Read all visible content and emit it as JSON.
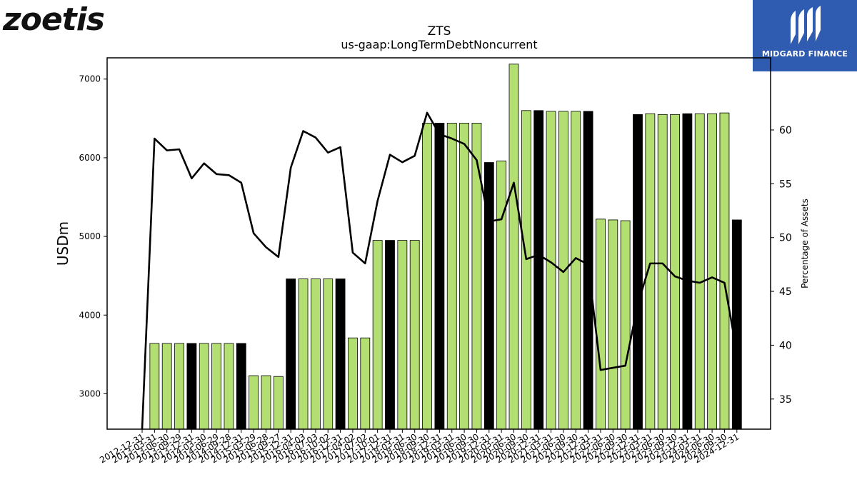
{
  "brand_left": "zoetis",
  "brand_right": "MIDGARD FINANCE",
  "colors": {
    "bar": "#b3df72",
    "bar_highlight": "#000000",
    "line": "#000000"
  },
  "chart_data": {
    "type": "bar",
    "title": "ZTS",
    "subtitle": "us-gaap:LongTermDebtNoncurrent",
    "ylabel": "USDm",
    "y2label": "Percentage of Assets",
    "ylim": [
      2550,
      7270
    ],
    "y2lim": [
      32.2,
      66.7
    ],
    "yticks": [
      3000,
      4000,
      5000,
      6000,
      7000
    ],
    "y2ticks": [
      35,
      40,
      45,
      50,
      55,
      60
    ],
    "categories": [
      "2012-12-31",
      "2013-03-31",
      "2013-06-30",
      "2013-09-29",
      "2013-12-31",
      "2014-03-30",
      "2014-06-29",
      "2014-09-28",
      "2014-12-31",
      "2015-03-29",
      "2015-06-28",
      "2015-09-27",
      "2015-12-31",
      "2016-04-03",
      "2016-07-03",
      "2016-10-02",
      "2016-12-31",
      "2017-04-02",
      "2017-07-02",
      "2017-10-01",
      "2017-12-31",
      "2018-03-31",
      "2018-06-30",
      "2018-09-30",
      "2018-12-31",
      "2019-03-31",
      "2019-06-30",
      "2019-09-30",
      "2019-12-31",
      "2020-03-31",
      "2020-06-30",
      "2020-09-30",
      "2020-12-31",
      "2021-03-31",
      "2021-06-30",
      "2021-09-30",
      "2021-12-31",
      "2022-03-31",
      "2022-06-30",
      "2022-09-30",
      "2022-12-31",
      "2023-03-31",
      "2023-06-30",
      "2023-09-30",
      "2023-12-31",
      "2024-03-31",
      "2024-06-30",
      "2024-09-30",
      "2024-12-31"
    ],
    "values": [
      null,
      3640,
      3640,
      3640,
      3640,
      3640,
      3640,
      3640,
      3640,
      3230,
      3230,
      3220,
      4460,
      4460,
      4460,
      4460,
      4460,
      3710,
      3710,
      4950,
      4950,
      4950,
      4950,
      6440,
      6440,
      6440,
      6440,
      6440,
      5940,
      5960,
      7190,
      6600,
      6600,
      6590,
      6590,
      6590,
      6590,
      5220,
      5210,
      5200,
      6550,
      6560,
      6550,
      6550,
      6560,
      6560,
      6560,
      6570,
      5210
    ],
    "highlight": [
      false,
      false,
      false,
      false,
      true,
      false,
      false,
      false,
      true,
      false,
      false,
      false,
      true,
      false,
      false,
      false,
      true,
      false,
      false,
      false,
      true,
      false,
      false,
      false,
      true,
      false,
      false,
      false,
      true,
      false,
      false,
      false,
      true,
      false,
      false,
      false,
      true,
      false,
      false,
      false,
      true,
      false,
      false,
      false,
      true,
      false,
      false,
      false,
      true
    ],
    "series": [
      {
        "type": "line",
        "axis": "right",
        "values": [
          0,
          59.2,
          58.1,
          58.2,
          55.5,
          56.9,
          55.9,
          55.8,
          55.1,
          50.4,
          49.1,
          48.2,
          56.5,
          59.9,
          59.3,
          57.9,
          58.4,
          48.6,
          47.6,
          53.4,
          57.7,
          57.0,
          57.6,
          61.6,
          59.6,
          59.2,
          58.7,
          57.2,
          51.5,
          51.7,
          55.1,
          48.0,
          48.4,
          47.7,
          46.8,
          48.1,
          47.5,
          37.7,
          37.9,
          38.1,
          43.8,
          47.6,
          47.6,
          46.4,
          46.0,
          45.8,
          46.3,
          45.8,
          39.3
        ]
      }
    ]
  }
}
